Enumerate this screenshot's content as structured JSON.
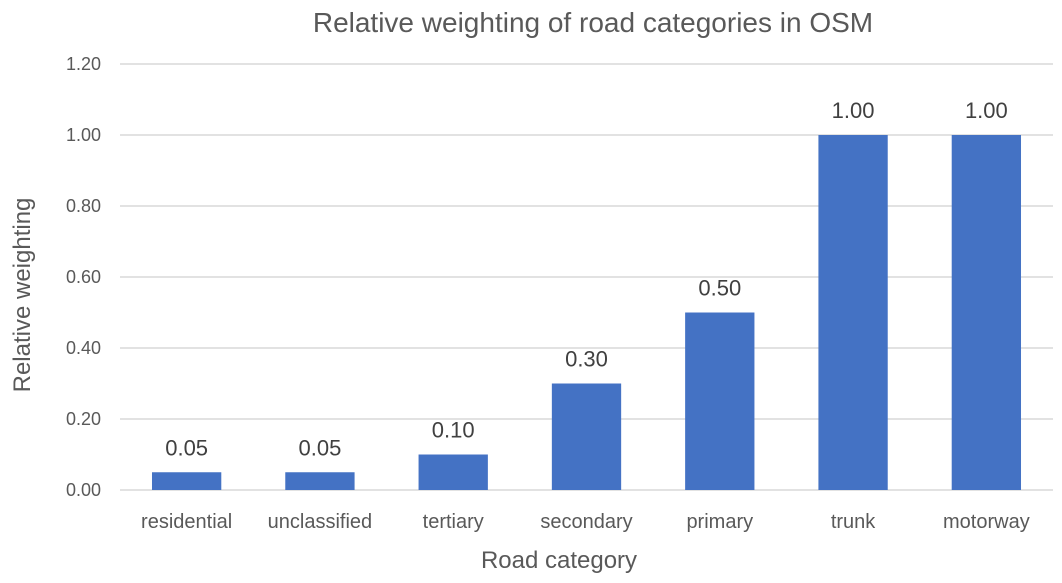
{
  "chart_data": {
    "type": "bar",
    "title": "Relative weighting of road categories in OSM",
    "xlabel": "Road category",
    "ylabel": "Relative weighting",
    "categories": [
      "residential",
      "unclassified",
      "tertiary",
      "secondary",
      "primary",
      "trunk",
      "motorway"
    ],
    "values": [
      0.05,
      0.05,
      0.1,
      0.3,
      0.5,
      1.0,
      1.0
    ],
    "data_labels": [
      "0.05",
      "0.05",
      "0.10",
      "0.30",
      "0.50",
      "1.00",
      "1.00"
    ],
    "ylim": [
      0,
      1.2
    ],
    "yticks": [
      0,
      0.2,
      0.4,
      0.6,
      0.8,
      1.0,
      1.2
    ],
    "ytick_labels": [
      "0.00",
      "0.20",
      "0.40",
      "0.60",
      "0.80",
      "1.00",
      "1.20"
    ],
    "grid": true,
    "legend": "none",
    "bar_color": "#4472c4"
  }
}
